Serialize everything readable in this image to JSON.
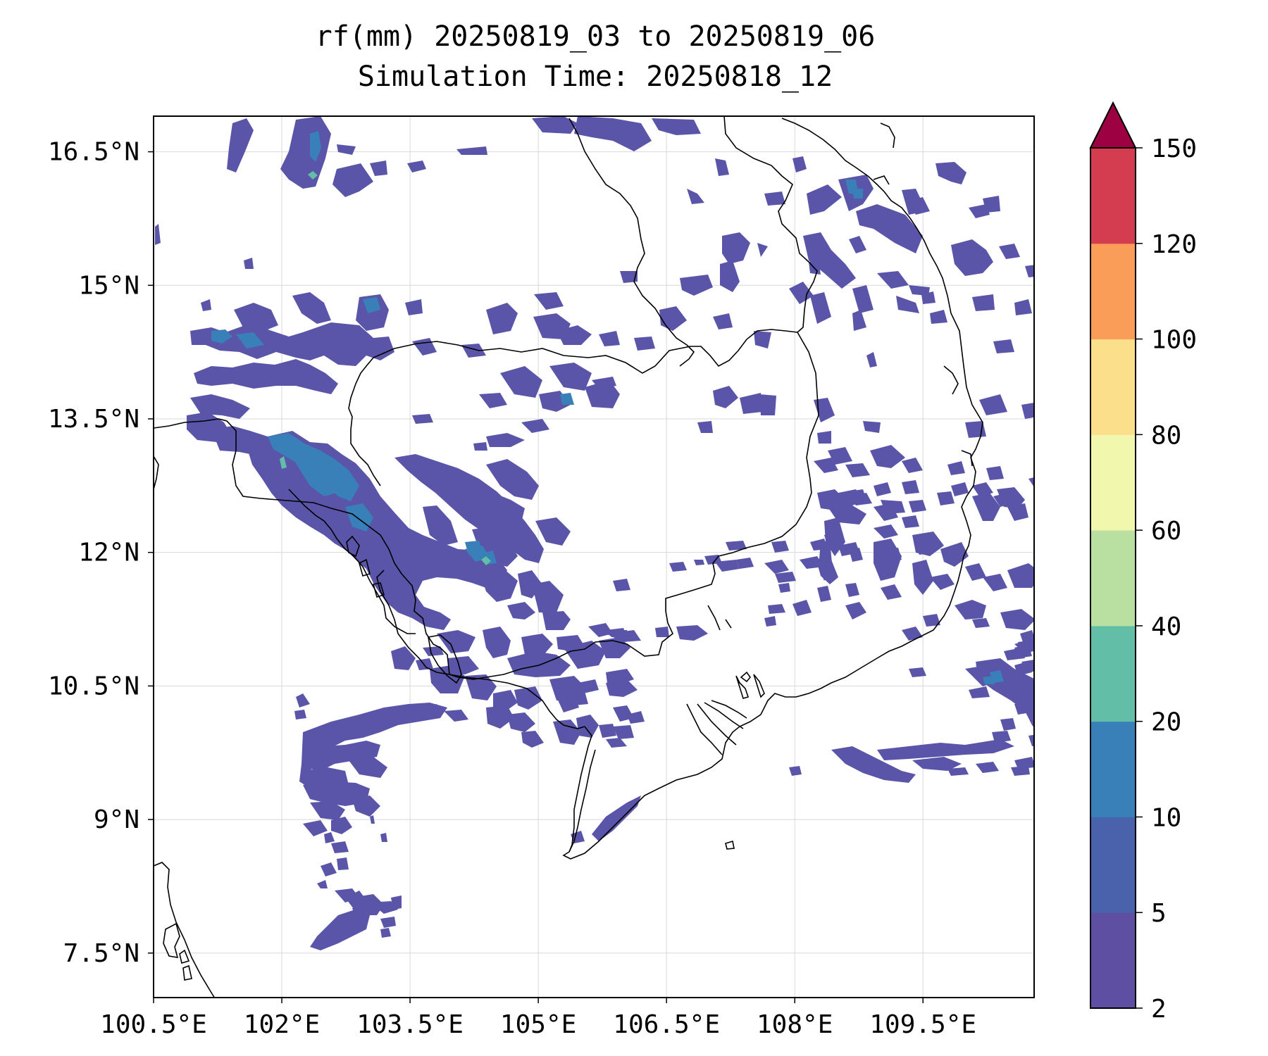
{
  "title": {
    "line1": "rf(mm) 20250819_03 to 20250819_06",
    "line2": "Simulation Time: 20250818_12"
  },
  "map": {
    "extent": {
      "lon_min": 100.5,
      "lon_max": 110.8,
      "lat_min": 7.0,
      "lat_max": 16.9
    },
    "lon_ticks": [
      {
        "value": 100.5,
        "label": "100.5°E"
      },
      {
        "value": 102.0,
        "label": "102°E"
      },
      {
        "value": 103.5,
        "label": "103.5°E"
      },
      {
        "value": 105.0,
        "label": "105°E"
      },
      {
        "value": 106.5,
        "label": "106.5°E"
      },
      {
        "value": 108.0,
        "label": "108°E"
      },
      {
        "value": 109.5,
        "label": "109.5°E"
      }
    ],
    "lat_ticks": [
      {
        "value": 16.5,
        "label": "16.5°N"
      },
      {
        "value": 15.0,
        "label": "15°N"
      },
      {
        "value": 13.5,
        "label": "13.5°N"
      },
      {
        "value": 12.0,
        "label": "12°N"
      },
      {
        "value": 10.5,
        "label": "10.5°N"
      },
      {
        "value": 9.0,
        "label": "9°N"
      },
      {
        "value": 7.5,
        "label": "7.5°N"
      }
    ],
    "gridlines": true
  },
  "colorbar": {
    "levels": [
      2,
      5,
      10,
      20,
      40,
      60,
      80,
      100,
      120,
      150
    ],
    "labels": [
      "2",
      "5",
      "10",
      "20",
      "40",
      "60",
      "80",
      "100",
      "120",
      "150"
    ],
    "colors": [
      "#5e4fa2",
      "#4a62ac",
      "#3a80b8",
      "#62bea6",
      "#b9e0a0",
      "#f1f7ac",
      "#fbdf8a",
      "#f99d59",
      "#d43d4f"
    ],
    "extend_color": "#9e0142",
    "extend": "max"
  },
  "colors": {
    "rain_light": "#5a55a8",
    "rain_moderate": "#3a80b8",
    "rain_heavy": "#62bea6",
    "coast": "#000000"
  }
}
